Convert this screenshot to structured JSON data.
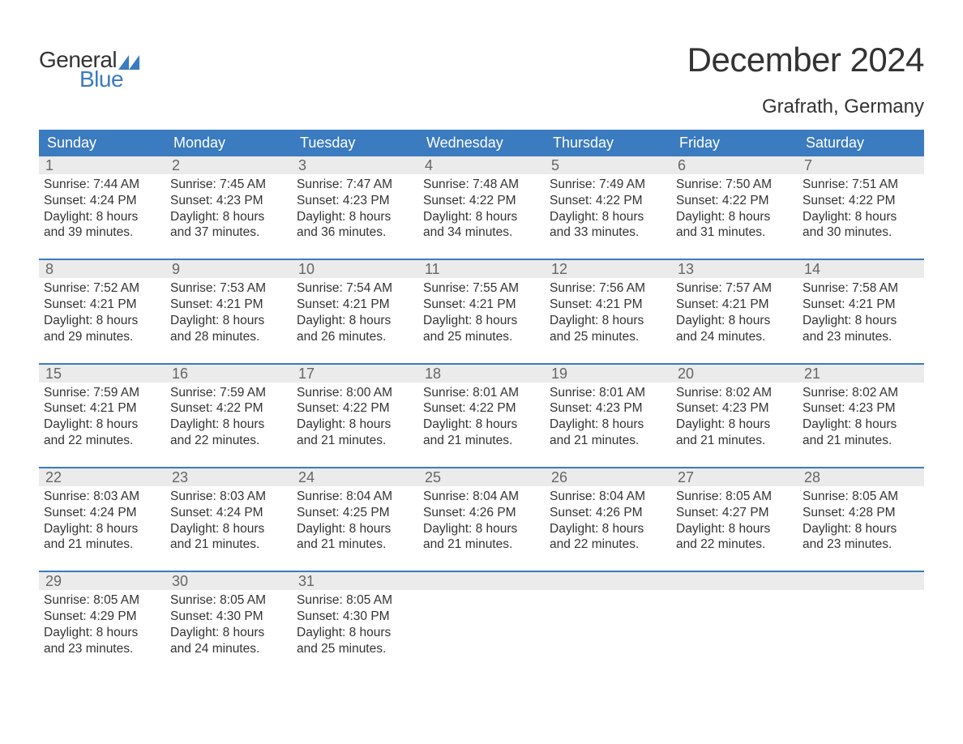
{
  "logo": {
    "text1": "General",
    "text2": "Blue",
    "shape_color": "#3b7bbf"
  },
  "title": "December 2024",
  "subtitle": "Grafrath, Germany",
  "colors": {
    "header_bg": "#3b7bbf",
    "daynum_bg": "#ebebeb",
    "border": "#3b7bbf",
    "text_dark": "#333333",
    "text_gray": "#666666"
  },
  "day_labels": [
    "Sunday",
    "Monday",
    "Tuesday",
    "Wednesday",
    "Thursday",
    "Friday",
    "Saturday"
  ],
  "weeks": [
    [
      {
        "n": "1",
        "sr": "7:44 AM",
        "ss": "4:24 PM",
        "dl1": "Daylight: 8 hours",
        "dl2": "and 39 minutes."
      },
      {
        "n": "2",
        "sr": "7:45 AM",
        "ss": "4:23 PM",
        "dl1": "Daylight: 8 hours",
        "dl2": "and 37 minutes."
      },
      {
        "n": "3",
        "sr": "7:47 AM",
        "ss": "4:23 PM",
        "dl1": "Daylight: 8 hours",
        "dl2": "and 36 minutes."
      },
      {
        "n": "4",
        "sr": "7:48 AM",
        "ss": "4:22 PM",
        "dl1": "Daylight: 8 hours",
        "dl2": "and 34 minutes."
      },
      {
        "n": "5",
        "sr": "7:49 AM",
        "ss": "4:22 PM",
        "dl1": "Daylight: 8 hours",
        "dl2": "and 33 minutes."
      },
      {
        "n": "6",
        "sr": "7:50 AM",
        "ss": "4:22 PM",
        "dl1": "Daylight: 8 hours",
        "dl2": "and 31 minutes."
      },
      {
        "n": "7",
        "sr": "7:51 AM",
        "ss": "4:22 PM",
        "dl1": "Daylight: 8 hours",
        "dl2": "and 30 minutes."
      }
    ],
    [
      {
        "n": "8",
        "sr": "7:52 AM",
        "ss": "4:21 PM",
        "dl1": "Daylight: 8 hours",
        "dl2": "and 29 minutes."
      },
      {
        "n": "9",
        "sr": "7:53 AM",
        "ss": "4:21 PM",
        "dl1": "Daylight: 8 hours",
        "dl2": "and 28 minutes."
      },
      {
        "n": "10",
        "sr": "7:54 AM",
        "ss": "4:21 PM",
        "dl1": "Daylight: 8 hours",
        "dl2": "and 26 minutes."
      },
      {
        "n": "11",
        "sr": "7:55 AM",
        "ss": "4:21 PM",
        "dl1": "Daylight: 8 hours",
        "dl2": "and 25 minutes."
      },
      {
        "n": "12",
        "sr": "7:56 AM",
        "ss": "4:21 PM",
        "dl1": "Daylight: 8 hours",
        "dl2": "and 25 minutes."
      },
      {
        "n": "13",
        "sr": "7:57 AM",
        "ss": "4:21 PM",
        "dl1": "Daylight: 8 hours",
        "dl2": "and 24 minutes."
      },
      {
        "n": "14",
        "sr": "7:58 AM",
        "ss": "4:21 PM",
        "dl1": "Daylight: 8 hours",
        "dl2": "and 23 minutes."
      }
    ],
    [
      {
        "n": "15",
        "sr": "7:59 AM",
        "ss": "4:21 PM",
        "dl1": "Daylight: 8 hours",
        "dl2": "and 22 minutes."
      },
      {
        "n": "16",
        "sr": "7:59 AM",
        "ss": "4:22 PM",
        "dl1": "Daylight: 8 hours",
        "dl2": "and 22 minutes."
      },
      {
        "n": "17",
        "sr": "8:00 AM",
        "ss": "4:22 PM",
        "dl1": "Daylight: 8 hours",
        "dl2": "and 21 minutes."
      },
      {
        "n": "18",
        "sr": "8:01 AM",
        "ss": "4:22 PM",
        "dl1": "Daylight: 8 hours",
        "dl2": "and 21 minutes."
      },
      {
        "n": "19",
        "sr": "8:01 AM",
        "ss": "4:23 PM",
        "dl1": "Daylight: 8 hours",
        "dl2": "and 21 minutes."
      },
      {
        "n": "20",
        "sr": "8:02 AM",
        "ss": "4:23 PM",
        "dl1": "Daylight: 8 hours",
        "dl2": "and 21 minutes."
      },
      {
        "n": "21",
        "sr": "8:02 AM",
        "ss": "4:23 PM",
        "dl1": "Daylight: 8 hours",
        "dl2": "and 21 minutes."
      }
    ],
    [
      {
        "n": "22",
        "sr": "8:03 AM",
        "ss": "4:24 PM",
        "dl1": "Daylight: 8 hours",
        "dl2": "and 21 minutes."
      },
      {
        "n": "23",
        "sr": "8:03 AM",
        "ss": "4:24 PM",
        "dl1": "Daylight: 8 hours",
        "dl2": "and 21 minutes."
      },
      {
        "n": "24",
        "sr": "8:04 AM",
        "ss": "4:25 PM",
        "dl1": "Daylight: 8 hours",
        "dl2": "and 21 minutes."
      },
      {
        "n": "25",
        "sr": "8:04 AM",
        "ss": "4:26 PM",
        "dl1": "Daylight: 8 hours",
        "dl2": "and 21 minutes."
      },
      {
        "n": "26",
        "sr": "8:04 AM",
        "ss": "4:26 PM",
        "dl1": "Daylight: 8 hours",
        "dl2": "and 22 minutes."
      },
      {
        "n": "27",
        "sr": "8:05 AM",
        "ss": "4:27 PM",
        "dl1": "Daylight: 8 hours",
        "dl2": "and 22 minutes."
      },
      {
        "n": "28",
        "sr": "8:05 AM",
        "ss": "4:28 PM",
        "dl1": "Daylight: 8 hours",
        "dl2": "and 23 minutes."
      }
    ],
    [
      {
        "n": "29",
        "sr": "8:05 AM",
        "ss": "4:29 PM",
        "dl1": "Daylight: 8 hours",
        "dl2": "and 23 minutes."
      },
      {
        "n": "30",
        "sr": "8:05 AM",
        "ss": "4:30 PM",
        "dl1": "Daylight: 8 hours",
        "dl2": "and 24 minutes."
      },
      {
        "n": "31",
        "sr": "8:05 AM",
        "ss": "4:30 PM",
        "dl1": "Daylight: 8 hours",
        "dl2": "and 25 minutes."
      },
      null,
      null,
      null,
      null
    ]
  ],
  "labels": {
    "sunrise": "Sunrise:",
    "sunset": "Sunset:"
  }
}
